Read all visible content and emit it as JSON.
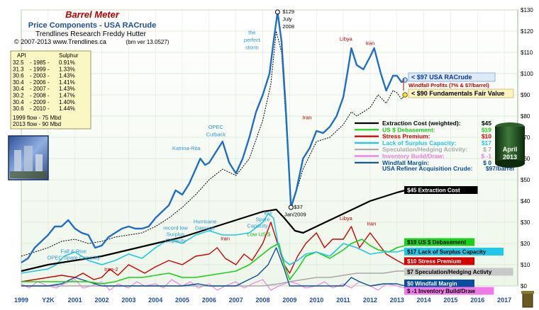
{
  "header": {
    "title": "Barrel Meter",
    "subtitle": "Price Components - USA RACrude",
    "org": "Trendlines Research   Freddy Hutter",
    "line3_left": "© 2007-2013  www.Trendlines.ca",
    "line3_right": "(bm ver 13.0527)"
  },
  "api_table": {
    "head_api": "API",
    "head_sulphur": "Sulphur",
    "rows": [
      [
        "32.5",
        "- 1985 -",
        "0.91%"
      ],
      [
        "31.3",
        "- 1999 -",
        "1.33%"
      ],
      [
        "30.6",
        "- 2003 -",
        "1.43%"
      ],
      [
        "30.4",
        "- 2006 -",
        "1.41%"
      ],
      [
        "30.4",
        "- 2007 -",
        "1.43%"
      ],
      [
        "30.2",
        "- 2008 -",
        "1.47%"
      ],
      [
        "30.4",
        "- 2009 -",
        "1.40%"
      ],
      [
        "30.6",
        "- 2010 -",
        "1.44%"
      ]
    ],
    "flow1": "1999 flow - 75 Mbd",
    "flow2": "2013 flow - 90 Mbd"
  },
  "badge": {
    "month": "April",
    "year": "2013"
  },
  "colors": {
    "crude": "#1f6fc4",
    "fundamentals": "#000000",
    "extraction": "#000000",
    "debasement": "#19d219",
    "stress": "#d40000",
    "surplus": "#1fc8e6",
    "speculation": "#a8a8a8",
    "inventory": "#f078e8",
    "windfall": "#0a4da0",
    "bg": "#f3f9f1",
    "gridline": "#d8e6d2"
  },
  "legend": {
    "rows": [
      {
        "label": "Extraction Cost  (weighted):",
        "value": "$45",
        "color": "#000000"
      },
      {
        "label": "US $ Debasement:",
        "value": "$19",
        "color": "#19d219"
      },
      {
        "label": "Stress Premium:",
        "value": "$10",
        "color": "#d40000"
      },
      {
        "label": "Lack of Surplus Capacity:",
        "value": "$17",
        "color": "#1fc8e6"
      },
      {
        "label": "Speculation/Hedging Activity:",
        "value": "$ 7",
        "color": "#a8a8a8"
      },
      {
        "label": "Inventory Build/Draw:",
        "value": "$ -1",
        "color": "#f078e8"
      },
      {
        "label": "Windfall Margin:",
        "value": "$ 0",
        "color": "#0a4da0"
      }
    ],
    "total_label": "USA Refiner Acquisition Crude:",
    "total_value": "$97/barrel"
  },
  "right_tags": [
    {
      "text": "$45  Extraction  Cost",
      "y": 45,
      "bg": "#000000",
      "fg": "#ffffff"
    },
    {
      "text": "$19  US $ Debasement",
      "y": 20.5,
      "bg": "#19d219",
      "fg": "#000000"
    },
    {
      "text": "$17  Lack of Surplus Capacity",
      "y": 16,
      "bg": "#1fc8e6",
      "fg": "#000000"
    },
    {
      "text": "$10  Stress  Premium",
      "y": 11.5,
      "bg": "#d40000",
      "fg": "#ffffff"
    },
    {
      "text": "$7  Speculation/Hedging  Activty",
      "y": 6.5,
      "bg": "#c8c8c8",
      "fg": "#000000"
    },
    {
      "text": "$0  Windfall  Margin",
      "y": 1,
      "bg": "#0a4da0",
      "fg": "#ffffff"
    },
    {
      "text": "$ -1  Inventory Build/Draw",
      "y": -2.5,
      "bg": "#f078e8",
      "fg": "#000000"
    }
  ],
  "price_tags": {
    "crude": "< $97  USA RACrude",
    "windfall": "Windfall Profits  (7% & $7/barrel)",
    "fundamentals": "< $90  Fundamentals Fair Value"
  },
  "annotations": [
    {
      "text": "$129",
      "x": 2008.55,
      "y": 129,
      "color": "#000000",
      "anchor": "start",
      "dx": 7,
      "dy": 2
    },
    {
      "text": "July",
      "x": 2008.55,
      "y": 125.5,
      "color": "#000000",
      "anchor": "start",
      "dx": 7,
      "dy": 2
    },
    {
      "text": "2008",
      "x": 2008.55,
      "y": 122,
      "color": "#000000",
      "anchor": "start",
      "dx": 7,
      "dy": 2
    },
    {
      "text": "the",
      "x": 2007.6,
      "y": 118.5,
      "color": "#2a9ad8",
      "anchor": "middle",
      "dx": 0,
      "dy": 0
    },
    {
      "text": "perfect",
      "x": 2007.6,
      "y": 115,
      "color": "#2a9ad8",
      "anchor": "middle",
      "dx": 0,
      "dy": 0
    },
    {
      "text": "storm",
      "x": 2007.6,
      "y": 111.5,
      "color": "#2a9ad8",
      "anchor": "middle",
      "dx": 0,
      "dy": 0
    },
    {
      "text": "Libya",
      "x": 2011.1,
      "y": 115.5,
      "color": "#c00000",
      "anchor": "middle",
      "dx": 0,
      "dy": 0
    },
    {
      "text": "Iran",
      "x": 2012.0,
      "y": 113.5,
      "color": "#c00000",
      "anchor": "middle",
      "dx": 0,
      "dy": 0
    },
    {
      "text": "Iran",
      "x": 2009.65,
      "y": 78.5,
      "color": "#c00000",
      "anchor": "middle",
      "dx": 0,
      "dy": 0
    },
    {
      "text": "OPEC",
      "x": 2006.25,
      "y": 74,
      "color": "#2a9ad8",
      "anchor": "middle",
      "dx": 0,
      "dy": 0
    },
    {
      "text": "Cutback",
      "x": 2006.25,
      "y": 70.5,
      "color": "#2a9ad8",
      "anchor": "middle",
      "dx": 0,
      "dy": 0
    },
    {
      "text": "Katrina-Rita",
      "x": 2005.15,
      "y": 64,
      "color": "#2a9ad8",
      "anchor": "middle",
      "dx": 0,
      "dy": 0
    },
    {
      "text": "$37",
      "x": 2009.05,
      "y": 37,
      "color": "#000000",
      "anchor": "start",
      "dx": 4,
      "dy": 2
    },
    {
      "text": "Jan/2009",
      "x": 2009.05,
      "y": 33.5,
      "color": "#000000",
      "anchor": "middle",
      "dx": 6,
      "dy": 2
    },
    {
      "text": "low",
      "x": 2008.2,
      "y": 33.5,
      "color": "#2a9ad8",
      "anchor": "middle",
      "dx": 0,
      "dy": 0
    },
    {
      "text": "Spare",
      "x": 2008.0,
      "y": 30.5,
      "color": "#2a9ad8",
      "anchor": "middle",
      "dx": 0,
      "dy": 0
    },
    {
      "text": "Capacity",
      "x": 2007.8,
      "y": 27.5,
      "color": "#2a9ad8",
      "anchor": "middle",
      "dx": 0,
      "dy": 0
    },
    {
      "text": "Low US $",
      "x": 2007.85,
      "y": 23.5,
      "color": "#19b019",
      "anchor": "middle",
      "dx": 0,
      "dy": 0
    },
    {
      "text": "Hurricane",
      "x": 2005.85,
      "y": 29.5,
      "color": "#2a9ad8",
      "anchor": "middle",
      "dx": 0,
      "dy": 0
    },
    {
      "text": "Damage",
      "x": 2005.85,
      "y": 26.5,
      "color": "#2a9ad8",
      "anchor": "middle",
      "dx": 0,
      "dy": 0
    },
    {
      "text": "Iran",
      "x": 2006.6,
      "y": 21.5,
      "color": "#c00000",
      "anchor": "middle",
      "dx": 0,
      "dy": 0
    },
    {
      "text": "record low",
      "x": 2004.75,
      "y": 26.5,
      "color": "#2a9ad8",
      "anchor": "middle",
      "dx": 0,
      "dy": 0
    },
    {
      "text": "Surplus",
      "x": 2004.75,
      "y": 23.5,
      "color": "#2a9ad8",
      "anchor": "middle",
      "dx": 0,
      "dy": 0
    },
    {
      "text": "Capacity",
      "x": 2004.75,
      "y": 20.5,
      "color": "#2a9ad8",
      "anchor": "middle",
      "dx": 0,
      "dy": 0
    },
    {
      "text": "Fall & Rise",
      "x": 2000.95,
      "y": 15.5,
      "color": "#2a9ad8",
      "anchor": "middle",
      "dx": 0,
      "dy": 0
    },
    {
      "text": "OPEC Spare Capacity",
      "x": 2000.95,
      "y": 12.5,
      "color": "#2a9ad8",
      "anchor": "middle",
      "dx": 0,
      "dy": 0
    },
    {
      "text": "Iraq-2",
      "x": 2002.35,
      "y": 7,
      "color": "#c00000",
      "anchor": "middle",
      "dx": 0,
      "dy": 0
    },
    {
      "text": "Libya",
      "x": 2011.1,
      "y": 31,
      "color": "#c00000",
      "anchor": "middle",
      "dx": 0,
      "dy": 0
    },
    {
      "text": "Iran",
      "x": 2012.05,
      "y": 28.5,
      "color": "#c00000",
      "anchor": "middle",
      "dx": 0,
      "dy": 0
    }
  ],
  "chart_data": {
    "type": "line",
    "xlim": [
      1999,
      2017.5
    ],
    "ylim": [
      0,
      130
    ],
    "x_ticks": [
      "1999",
      "Y2K",
      "2001",
      "2002",
      "2003",
      "2004",
      "2005",
      "2006",
      "2007",
      "2008",
      "2009",
      "2010",
      "2011",
      "2012",
      "2013",
      "2014",
      "2015",
      "2016",
      "2017"
    ],
    "y_ticks": [
      "$0",
      "$10",
      "$20",
      "$30",
      "$40",
      "$50",
      "$60",
      "$70",
      "$80",
      "$90",
      "$100",
      "$110",
      "$120",
      "$130"
    ],
    "grid": true,
    "series": [
      {
        "name": "USA RACrude",
        "x": [
          1999,
          1999.25,
          1999.5,
          1999.75,
          2000,
          2000.25,
          2000.5,
          2000.75,
          2001,
          2001.25,
          2001.5,
          2001.75,
          2002,
          2002.25,
          2002.5,
          2002.75,
          2003,
          2003.25,
          2003.5,
          2003.75,
          2004,
          2004.25,
          2004.5,
          2004.75,
          2005,
          2005.25,
          2005.5,
          2005.67,
          2005.85,
          2006,
          2006.25,
          2006.5,
          2006.75,
          2007,
          2007.25,
          2007.5,
          2007.75,
          2008,
          2008.25,
          2008.4,
          2008.55,
          2008.7,
          2008.85,
          2009.05,
          2009.25,
          2009.5,
          2009.75,
          2010,
          2010.25,
          2010.5,
          2010.75,
          2011,
          2011.15,
          2011.3,
          2011.5,
          2011.75,
          2012,
          2012.15,
          2012.4,
          2012.6,
          2012.85,
          2013,
          2013.17,
          2013.3
        ],
        "y": [
          11,
          13,
          18,
          21,
          24,
          28,
          28,
          31,
          27,
          25,
          24,
          18,
          19,
          23,
          25,
          27,
          28,
          27,
          27,
          28,
          32,
          35,
          38,
          45,
          43,
          48,
          55,
          60,
          57,
          58,
          63,
          68,
          58,
          53,
          60,
          70,
          82,
          90,
          100,
          115,
          129,
          115,
          85,
          37,
          45,
          60,
          65,
          73,
          72,
          75,
          80,
          89,
          100,
          112,
          104,
          102,
          108,
          112,
          100,
          92,
          99,
          99,
          96,
          97
        ]
      },
      {
        "name": "Fundamentals Fair Value",
        "x": [
          1999,
          1999.5,
          2000,
          2000.5,
          2001,
          2001.5,
          2002,
          2002.5,
          2003,
          2003.5,
          2004,
          2004.5,
          2005,
          2005.5,
          2006,
          2006.5,
          2007,
          2007.5,
          2008,
          2008.3,
          2008.5,
          2008.7,
          2008.85,
          2009.05,
          2009.5,
          2010,
          2010.5,
          2011,
          2011.3,
          2011.5,
          2012,
          2012.3,
          2012.6,
          2012.85,
          2013,
          2013.17,
          2013.3
        ],
        "y": [
          14,
          16,
          18,
          21,
          22,
          20,
          21,
          23,
          24,
          25,
          28,
          32,
          37,
          43,
          50,
          55,
          52,
          60,
          78,
          95,
          120,
          110,
          80,
          36,
          55,
          68,
          70,
          76,
          82,
          80,
          84,
          90,
          86,
          92,
          91,
          88,
          90
        ]
      },
      {
        "name": "Extraction Cost",
        "x": [
          1999,
          2000,
          2001,
          2002,
          2003,
          2004,
          2005,
          2006,
          2007,
          2008,
          2008.5,
          2008.8,
          2009.2,
          2009.5,
          2010,
          2010.5,
          2011,
          2011.5,
          2012,
          2012.5,
          2013,
          2013.3
        ],
        "y": [
          7,
          10,
          12,
          14,
          17,
          20,
          23,
          27,
          31,
          35,
          36,
          32,
          26,
          25,
          28,
          31,
          34,
          37,
          40,
          42,
          44,
          45
        ]
      },
      {
        "name": "US $ Debasement",
        "x": [
          1999,
          1999.5,
          2000,
          2000.5,
          2001,
          2001.5,
          2002,
          2002.5,
          2003,
          2003.5,
          2004,
          2004.5,
          2005,
          2005.5,
          2006,
          2006.5,
          2007,
          2007.5,
          2008,
          2008.3,
          2008.6,
          2008.8,
          2009,
          2009.3,
          2009.6,
          2010,
          2010.5,
          2011,
          2011.3,
          2011.7,
          2012,
          2012.3,
          2012.7,
          2013,
          2013.3
        ],
        "y": [
          2,
          2,
          2,
          2,
          2,
          2,
          1,
          2,
          4,
          4,
          5,
          6,
          4,
          4,
          5,
          6,
          7,
          10,
          15,
          18,
          20,
          10,
          3,
          8,
          14,
          16,
          13,
          17,
          20,
          22,
          19,
          17,
          16,
          18,
          19
        ]
      },
      {
        "name": "Stress Premium",
        "x": [
          1999,
          1999.5,
          2000,
          2000.5,
          2001,
          2001.3,
          2001.7,
          2002,
          2002.3,
          2002.6,
          2003,
          2003.3,
          2003.6,
          2004,
          2004.5,
          2005,
          2005.5,
          2006,
          2006.3,
          2006.6,
          2007,
          2007.3,
          2007.6,
          2008,
          2008.3,
          2008.6,
          2008.8,
          2009,
          2009.3,
          2009.6,
          2010,
          2010.3,
          2010.6,
          2011,
          2011.3,
          2011.6,
          2012,
          2012.3,
          2012.6,
          2013,
          2013.3
        ],
        "y": [
          2,
          3,
          4,
          5,
          4,
          6,
          3,
          4,
          8,
          5,
          10,
          8,
          6,
          9,
          12,
          10,
          14,
          15,
          18,
          13,
          10,
          15,
          12,
          20,
          30,
          18,
          10,
          6,
          14,
          20,
          25,
          18,
          22,
          22,
          28,
          18,
          25,
          20,
          15,
          12,
          10
        ]
      },
      {
        "name": "Lack of Surplus Capacity",
        "x": [
          1999,
          1999.5,
          2000,
          2000.3,
          2000.6,
          2001,
          2001.5,
          2002,
          2002.5,
          2003,
          2003.5,
          2004,
          2004.5,
          2005,
          2005.5,
          2006,
          2006.5,
          2007,
          2007.5,
          2007.8,
          2008,
          2008.2,
          2008.4,
          2008.6,
          2008.8,
          2009,
          2009.3,
          2009.6,
          2010,
          2010.5,
          2011,
          2011.5,
          2012,
          2012.5,
          2013,
          2013.3
        ],
        "y": [
          6,
          7,
          8,
          10,
          14,
          16,
          12,
          10,
          12,
          15,
          13,
          18,
          22,
          20,
          24,
          26,
          24,
          24,
          25,
          28,
          30,
          34,
          32,
          18,
          12,
          10,
          12,
          15,
          16,
          14,
          20,
          18,
          15,
          16,
          16,
          17
        ]
      },
      {
        "name": "Speculation/Hedging Activity",
        "x": [
          1999,
          2000,
          2001,
          2002,
          2003,
          2004,
          2005,
          2006,
          2007,
          2008,
          2008.6,
          2009,
          2009.5,
          2010,
          2010.5,
          2011,
          2011.5,
          2012,
          2012.5,
          2013,
          2013.3
        ],
        "y": [
          0,
          0,
          0,
          0,
          0,
          0,
          0,
          0,
          0,
          0,
          1,
          2,
          3,
          4,
          4,
          5,
          6,
          6,
          6,
          7,
          7
        ]
      },
      {
        "name": "Inventory Build/Draw",
        "x": [
          1999,
          1999.3,
          1999.6,
          2000,
          2000.3,
          2000.6,
          2001,
          2001.3,
          2001.6,
          2002,
          2002.3,
          2002.6,
          2003,
          2003.3,
          2003.6,
          2004,
          2004.3,
          2004.6,
          2005,
          2005.3,
          2005.6,
          2006,
          2006.3,
          2006.6,
          2007,
          2007.3,
          2007.6,
          2008,
          2008.3,
          2008.6,
          2009,
          2009.3,
          2009.6,
          2010,
          2010.3,
          2010.6,
          2011,
          2011.3,
          2011.6,
          2012,
          2012.3,
          2012.6,
          2013,
          2013.3
        ],
        "y": [
          1,
          -1,
          2,
          0,
          -1,
          1,
          3,
          -1,
          0,
          2,
          -2,
          1,
          -1,
          2,
          0,
          1,
          -1,
          3,
          0,
          2,
          -1,
          1,
          -2,
          0,
          2,
          -1,
          1,
          3,
          -2,
          0,
          2,
          1,
          -1,
          0,
          2,
          -1,
          1,
          -1,
          2,
          0,
          -2,
          1,
          0,
          -1
        ]
      },
      {
        "name": "Windfall Margin",
        "x": [
          1999,
          2000,
          2000.5,
          2001,
          2001.5,
          2002,
          2003,
          2004,
          2005,
          2005.6,
          2006,
          2007,
          2007.8,
          2008.2,
          2008.5,
          2008.8,
          2009,
          2009.5,
          2010,
          2011,
          2011.3,
          2011.6,
          2012,
          2012.5,
          2013,
          2013.3
        ],
        "y": [
          0,
          0,
          1,
          4,
          2,
          0,
          0,
          0,
          0,
          1,
          0,
          0,
          5,
          10,
          18,
          8,
          0,
          0,
          0,
          0,
          4,
          2,
          0,
          1,
          1,
          0
        ]
      }
    ]
  }
}
